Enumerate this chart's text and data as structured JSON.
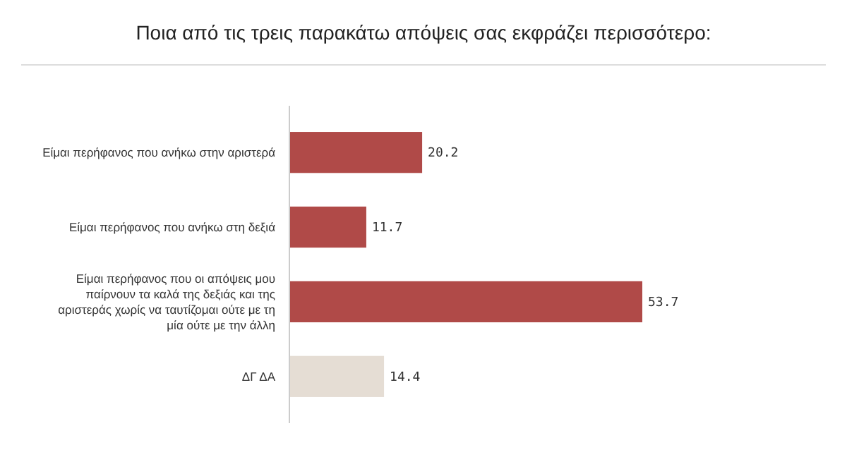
{
  "chart_data": {
    "type": "bar",
    "orientation": "horizontal",
    "title": "Ποια από τις τρεις παρακάτω απόψεις σας εκφράζει περισσότερο:",
    "categories": [
      "Είμαι περήφανος που ανήκω στην αριστερά",
      "Είμαι περήφανος που ανήκω στη δεξιά",
      "Είμαι περήφανος που οι απόψεις μου παίρνουν τα καλά της δεξιάς και της αριστεράς χωρίς να ταυτίζομαι ούτε με τη μία ούτε με την άλλη",
      "ΔΓ ΔΑ"
    ],
    "values": [
      20.2,
      11.7,
      53.7,
      14.4
    ],
    "colors": [
      "#b04a48",
      "#b04a48",
      "#b04a48",
      "#e5ddd4"
    ],
    "data_labels": true
  }
}
